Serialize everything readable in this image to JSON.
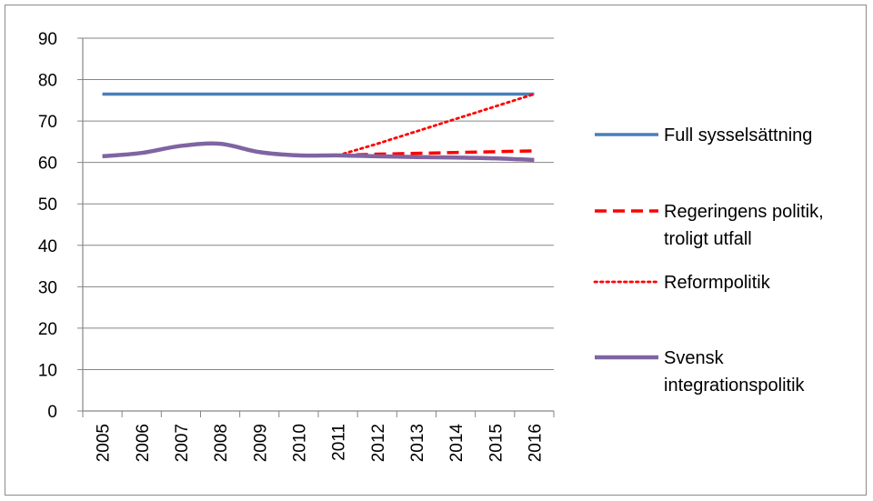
{
  "chart_data": {
    "type": "line",
    "title": "",
    "xlabel": "",
    "ylabel": "",
    "x": [
      "2005",
      "2006",
      "2007",
      "2008",
      "2009",
      "2010",
      "2011",
      "2012",
      "2013",
      "2014",
      "2015",
      "2016"
    ],
    "ylim": [
      0,
      90
    ],
    "yticks": [
      0,
      10,
      20,
      30,
      40,
      50,
      60,
      70,
      80,
      90
    ],
    "grid": "horizontal",
    "legend_position": "right",
    "series": [
      {
        "name": "Full sysselsättning",
        "color": "#4a7ebb",
        "style": "solid",
        "values": [
          76.5,
          76.5,
          76.5,
          76.5,
          76.5,
          76.5,
          76.5,
          76.5,
          76.5,
          76.5,
          76.5,
          76.5
        ]
      },
      {
        "name": "Regeringens politik, troligt utfall",
        "color": "#ff0000",
        "style": "dashed",
        "values": [
          null,
          null,
          null,
          null,
          null,
          null,
          61.7,
          62.0,
          62.2,
          62.4,
          62.6,
          62.8
        ]
      },
      {
        "name": "Reformpolitik",
        "color": "#ff0000",
        "style": "dotted",
        "values": [
          null,
          null,
          null,
          null,
          null,
          null,
          61.7,
          64.5,
          67.5,
          70.5,
          73.5,
          76.5
        ]
      },
      {
        "name": "Svensk integrationspolitik",
        "color": "#8064a2",
        "style": "solid",
        "values": [
          61.5,
          62.3,
          64.0,
          64.5,
          62.5,
          61.7,
          61.7,
          61.5,
          61.3,
          61.2,
          61.0,
          60.6
        ]
      }
    ]
  }
}
